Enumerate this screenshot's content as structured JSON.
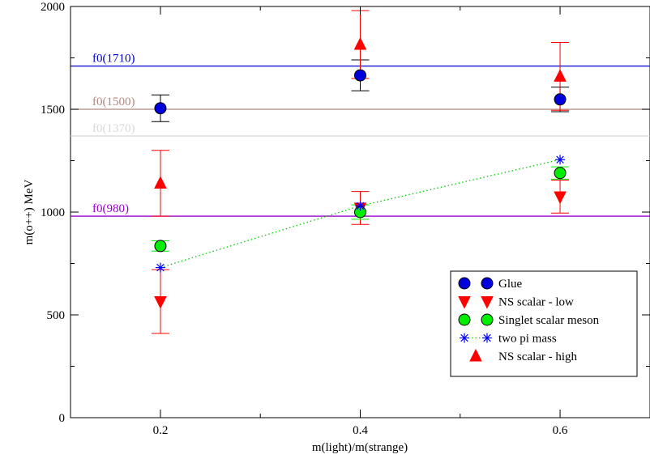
{
  "chart_data": {
    "type": "scatter",
    "xlabel": "m(light)/m(strange)",
    "ylabel": "m(o++)  MeV",
    "xlim": [
      0.11,
      0.69
    ],
    "ylim": [
      0,
      2000
    ],
    "x_ticks": [
      0.2,
      0.4,
      0.6
    ],
    "x_tick_labels": [
      "0.2",
      "0.4",
      "0.6"
    ],
    "y_ticks": [
      0,
      500,
      1000,
      1500,
      2000
    ],
    "y_tick_labels": [
      "0",
      "500",
      "1000",
      "1500",
      "2000"
    ],
    "x_minor_ticks": [
      0.3,
      0.5
    ],
    "y_minor_ticks": [
      250,
      750,
      1250,
      1750
    ],
    "grid": false,
    "legend_position": "lower-right",
    "reference_lines": [
      {
        "label": "f0(1710)",
        "value": 1710,
        "color": "#0000cc"
      },
      {
        "label": "f0(1500)",
        "value": 1500,
        "color": "#b08a80"
      },
      {
        "label": "f0(1370)",
        "value": 1370,
        "color": "#d8d8d8"
      },
      {
        "label": "f0(980)",
        "value": 980,
        "color": "#9900cc"
      }
    ],
    "series": [
      {
        "name": "Glue",
        "marker": "circle",
        "color": "#0000dd",
        "error_color": "#000000",
        "x": [
          0.2,
          0.4,
          0.6
        ],
        "y": [
          1505,
          1665,
          1548
        ],
        "yerr": [
          65,
          75,
          60
        ]
      },
      {
        "name": "NS scalar - low",
        "marker": "triangle-down",
        "color": "#ff0000",
        "error_color": "#ff0000",
        "x": [
          0.2,
          0.4,
          0.6
        ],
        "y": [
          565,
          1020,
          1075
        ],
        "yerr": [
          155,
          80,
          80
        ]
      },
      {
        "name": "Singlet scalar meson",
        "marker": "circle",
        "color": "#00ee00",
        "error_color": "#00ee00",
        "x": [
          0.2,
          0.4,
          0.6
        ],
        "y": [
          835,
          1000,
          1190
        ],
        "yerr": [
          25,
          35,
          30
        ]
      },
      {
        "name": "two pi mass",
        "marker": "asterisk",
        "color": "#0000ff",
        "line": "dotted",
        "line_color": "#00cc00",
        "x": [
          0.2,
          0.4,
          0.6
        ],
        "y": [
          730,
          1030,
          1255
        ]
      },
      {
        "name": "NS scalar - high",
        "marker": "triangle-up",
        "color": "#ff0000",
        "error_color": "#ff0000",
        "x": [
          0.2,
          0.4,
          0.6
        ],
        "y": [
          1140,
          1815,
          1660
        ],
        "yerr": [
          160,
          165,
          165
        ]
      }
    ]
  }
}
